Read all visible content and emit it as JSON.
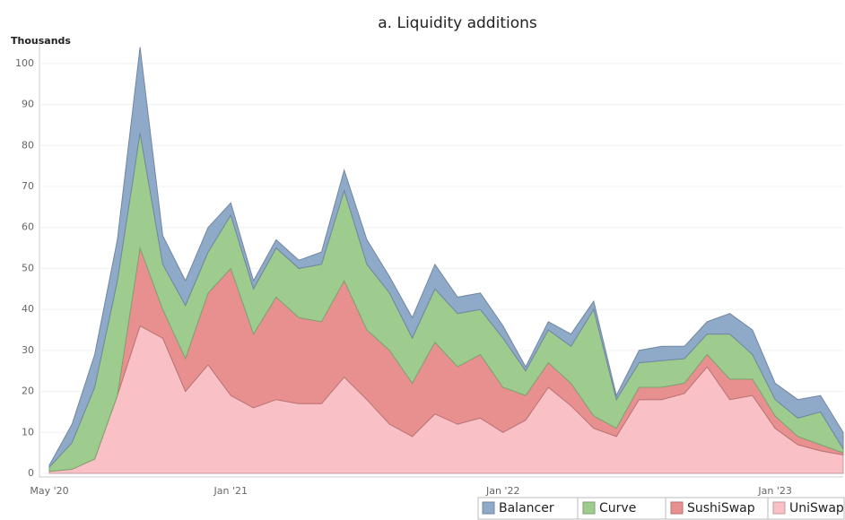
{
  "chart_data": {
    "type": "stacked_area",
    "title": "a. Liquidity additions",
    "y_label": "Thousands",
    "categories": [
      "May '20",
      null,
      null,
      null,
      null,
      null,
      null,
      null,
      "Jan '21",
      null,
      null,
      null,
      null,
      null,
      null,
      null,
      null,
      null,
      null,
      null,
      "Jan '22",
      null,
      null,
      null,
      null,
      null,
      null,
      null,
      null,
      null,
      null,
      null,
      "Jan '23",
      null,
      null,
      null
    ],
    "series": [
      {
        "name": "Balancer",
        "color": "#8fa9c8",
        "values": [
          0.5,
          4.5,
          8,
          10,
          21,
          7,
          6,
          6,
          3,
          2,
          2,
          2,
          3,
          5,
          6,
          4,
          5,
          6,
          4,
          4,
          3,
          1,
          2,
          3,
          2,
          1,
          3,
          3.5,
          3,
          3,
          5,
          6,
          4,
          4.5,
          4,
          4
        ]
      },
      {
        "name": "Curve",
        "color": "#9dcc8e",
        "values": [
          1,
          6.5,
          17.5,
          28,
          28,
          11,
          13,
          10,
          13,
          11,
          12,
          12,
          14,
          22,
          16,
          14,
          11,
          13,
          13,
          11,
          12,
          6,
          8,
          9,
          26,
          7,
          6,
          6.5,
          6,
          5,
          11,
          6,
          4,
          4.5,
          8,
          1
        ]
      },
      {
        "name": "SushiSwap",
        "color": "#e89090",
        "values": [
          0,
          0,
          0,
          0,
          19,
          7,
          8,
          17.5,
          31,
          18,
          25,
          21,
          20,
          23.5,
          17,
          18,
          13,
          17.5,
          14,
          15.5,
          11,
          6,
          6,
          5.5,
          3,
          2,
          3,
          3,
          2.5,
          3,
          5,
          4,
          3,
          2,
          1.5,
          0.5
        ]
      },
      {
        "name": "UniSwap",
        "color": "#f9c0c6",
        "values": [
          0.5,
          1,
          3.5,
          19,
          36,
          33,
          20,
          26.5,
          19,
          16,
          18,
          17,
          17,
          23.5,
          18,
          12,
          9,
          14.5,
          12,
          13.5,
          10,
          13,
          21,
          16.5,
          11,
          9,
          18,
          18,
          19.5,
          26,
          18,
          19,
          11,
          7,
          5.5,
          4.5
        ]
      }
    ],
    "ylim": [
      0,
      105
    ],
    "yticks": [
      0,
      10,
      20,
      30,
      40,
      50,
      60,
      70,
      80,
      90,
      100
    ],
    "grid": true,
    "legend": "bottom-right"
  }
}
